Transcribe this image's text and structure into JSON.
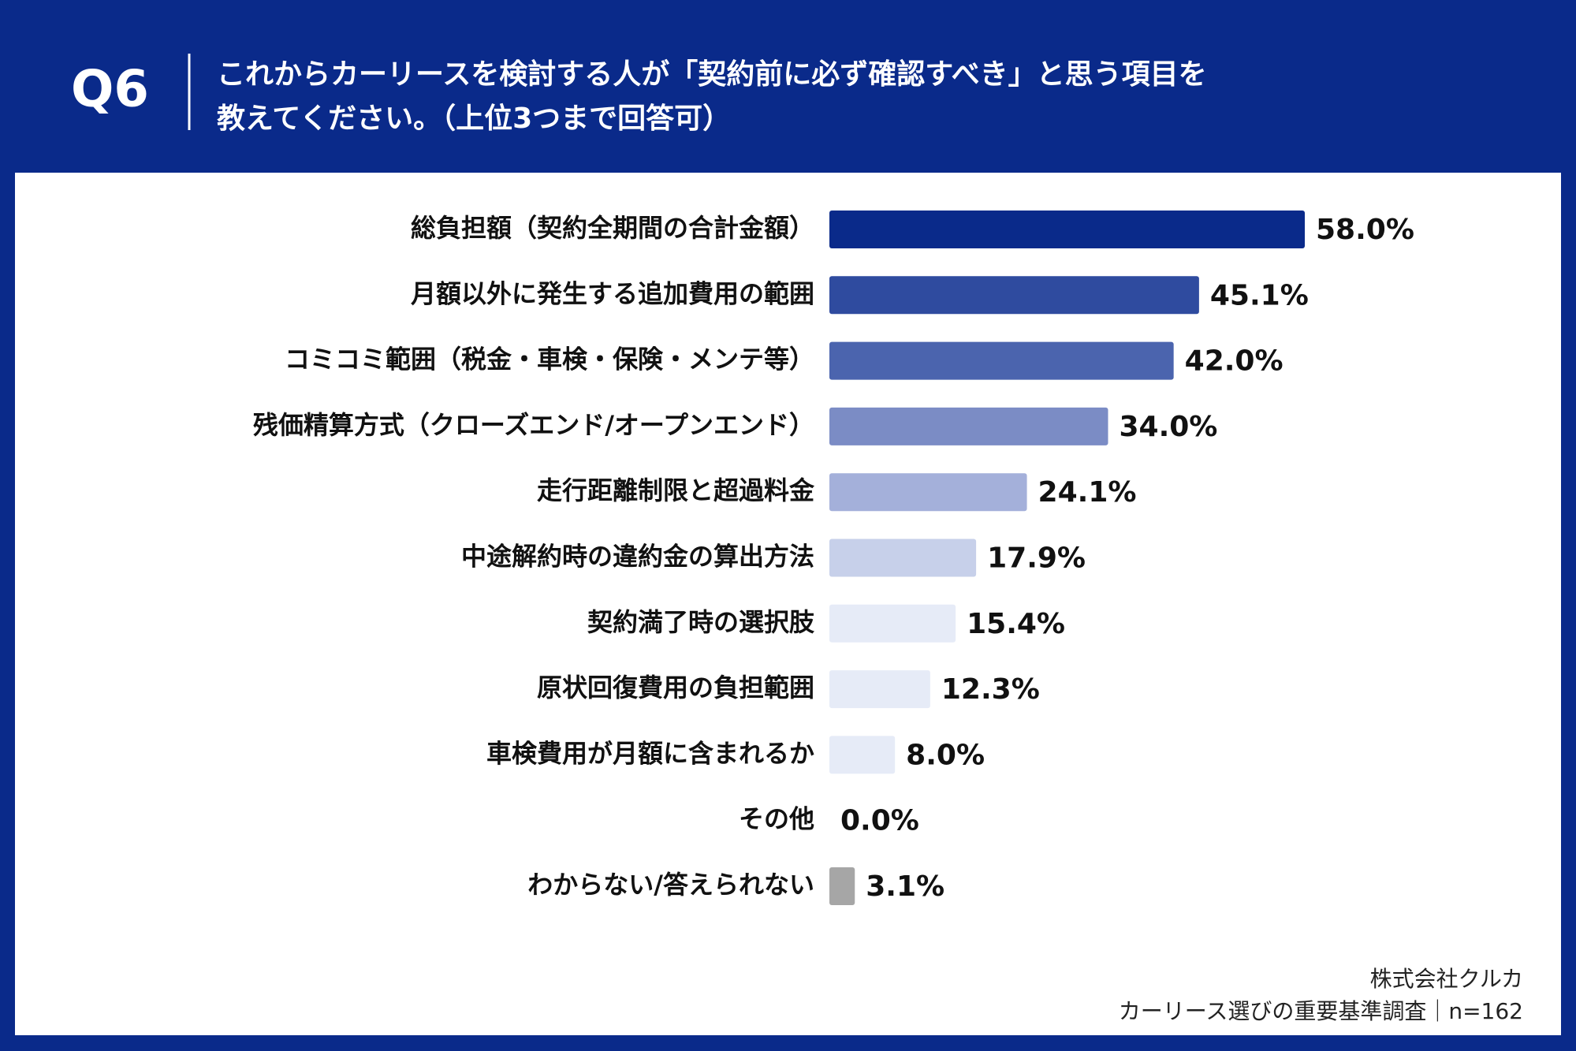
{
  "chart_data": {
    "type": "bar",
    "orientation": "horizontal",
    "question_no": "Q6",
    "title": [
      "これからカーリースを検討する人が「契約前に必ず確認すべき」と思う項目を",
      "教えてください。（上位3つまで回答可）"
    ],
    "categories": [
      "総負担額（契約全期間の合計金額）",
      "月額以外に発生する追加費用の範囲",
      "コミコミ範囲（税金・車検・保険・メンテ等）",
      "残価精算方式（クローズエンド/オープンエンド）",
      "走行距離制限と超過料金",
      "中途解約時の違約金の算出方法",
      "契約満了時の選択肢",
      "原状回復費用の負担範囲",
      "車検費用が月額に含まれるか",
      "その他",
      "わからない/答えられない"
    ],
    "values": [
      58.0,
      45.1,
      42.0,
      34.0,
      24.1,
      17.9,
      15.4,
      12.3,
      8.0,
      0.0,
      3.1
    ],
    "value_labels": [
      "58.0%",
      "45.1%",
      "42.0%",
      "34.0%",
      "24.1%",
      "17.9%",
      "15.4%",
      "12.3%",
      "8.0%",
      "0.0%",
      "3.1%"
    ],
    "colors": [
      "#0a2a8a",
      "#2f4b9f",
      "#4b64ae",
      "#7b8cc5",
      "#a4b0da",
      "#c7d0ea",
      "#e6ebf7",
      "#e6ebf7",
      "#e6ebf7",
      "#e6ebf7",
      "#a6a6a6"
    ],
    "source": [
      "株式会社クルカ",
      "カーリース選びの重要基準調査｜n=162"
    ]
  }
}
